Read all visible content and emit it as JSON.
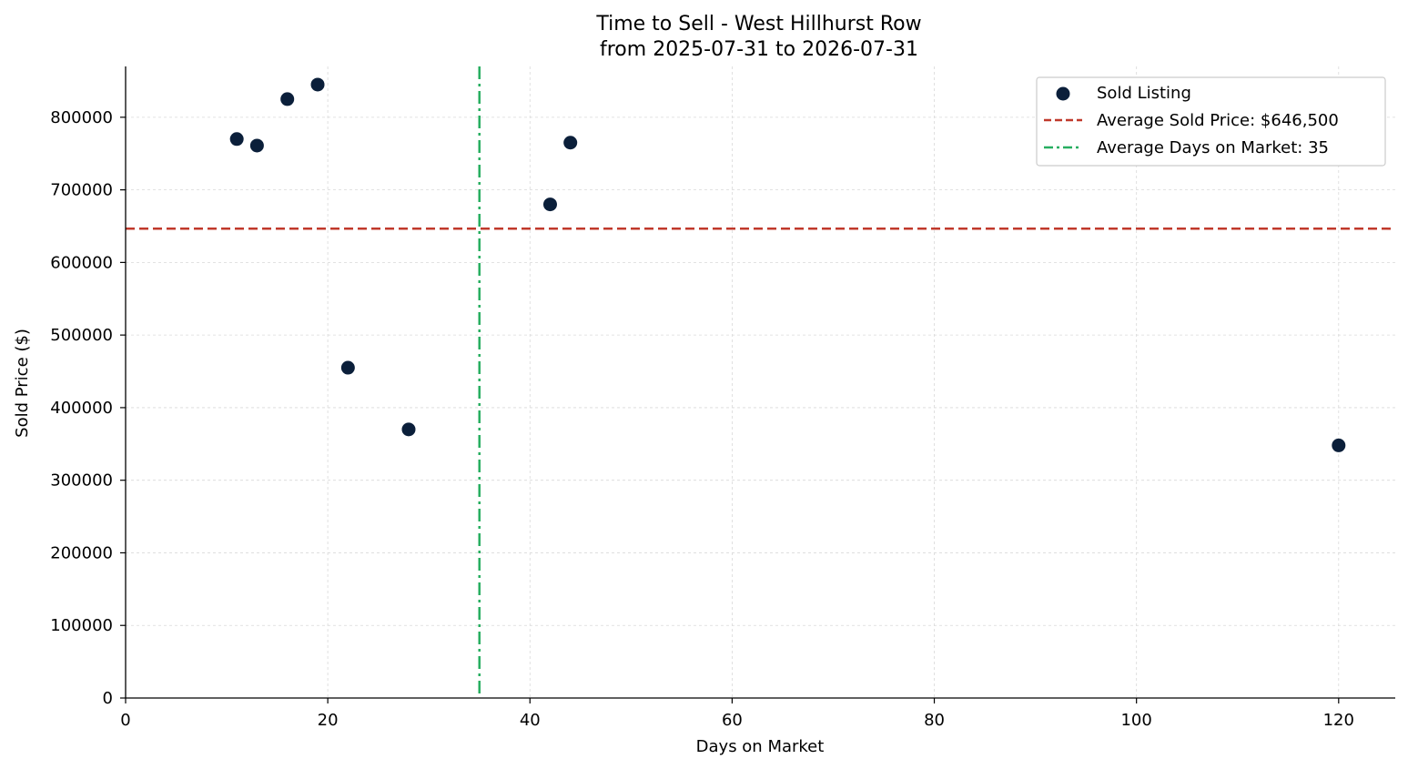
{
  "chart_data": {
    "type": "scatter",
    "title": "Time to Sell - West Hillhurst Row",
    "subtitle": "from 2025-07-31 to 2026-07-31",
    "xlabel": "Days on Market",
    "ylabel": "Sold Price ($)",
    "xlim": [
      0,
      125.6
    ],
    "ylim": [
      0,
      870000
    ],
    "x_ticks": [
      0,
      20,
      40,
      60,
      80,
      100,
      120
    ],
    "y_ticks": [
      0,
      100000,
      200000,
      300000,
      400000,
      500000,
      600000,
      700000,
      800000
    ],
    "grid": true,
    "legend_position": "top-right",
    "series": [
      {
        "name": "Sold Listing",
        "color": "#0b1f3a",
        "points": [
          {
            "x": 11,
            "y": 770000
          },
          {
            "x": 13,
            "y": 761000
          },
          {
            "x": 16,
            "y": 825000
          },
          {
            "x": 19,
            "y": 845000
          },
          {
            "x": 22,
            "y": 455000
          },
          {
            "x": 28,
            "y": 370000
          },
          {
            "x": 42,
            "y": 680000
          },
          {
            "x": 44,
            "y": 765000
          },
          {
            "x": 120,
            "y": 348000
          }
        ]
      }
    ],
    "reference_lines": [
      {
        "name": "Average Sold Price: $646,500",
        "orientation": "horizontal",
        "value": 646500,
        "style": "dashed",
        "color": "#c0392b"
      },
      {
        "name": "Average Days on Market: 35",
        "orientation": "vertical",
        "value": 35,
        "style": "dashdot",
        "color": "#27ae60"
      }
    ]
  }
}
